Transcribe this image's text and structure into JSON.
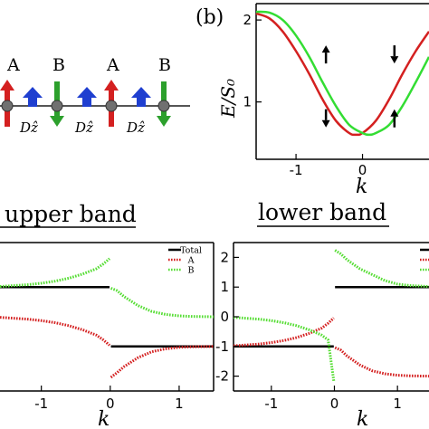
{
  "chain": {
    "site_labels": [
      "A",
      "B",
      "A",
      "B"
    ],
    "dm_labels": [
      "Dẑ",
      "Dẑ",
      "Dẑ"
    ],
    "colors": {
      "A": "#d42020",
      "B": "#2ca02c",
      "D": "#1f3fd0",
      "atom": "#707070"
    }
  },
  "chart_data": [
    {
      "id": "panel-b",
      "type": "line",
      "panel_label": "(b)",
      "xlabel": "k",
      "ylabel": "E/S₀",
      "xlim": [
        -1.6,
        1.0
      ],
      "ylim": [
        0.3,
        2.2
      ],
      "xticks": [
        -1,
        0
      ],
      "yticks": [
        1,
        2
      ],
      "series": [
        {
          "color": "#d42020",
          "x": [
            -1.6,
            -1.4,
            -1.2,
            -1.0,
            -0.8,
            -0.6,
            -0.4,
            -0.2,
            -0.1,
            0.0,
            0.2,
            0.4,
            0.6,
            0.8,
            1.0
          ],
          "values": [
            2.08,
            2.02,
            1.86,
            1.62,
            1.34,
            1.03,
            0.77,
            0.62,
            0.6,
            0.62,
            0.77,
            1.03,
            1.34,
            1.62,
            1.86
          ]
        },
        {
          "color": "#33dd33",
          "x": [
            -1.6,
            -1.4,
            -1.2,
            -1.0,
            -0.8,
            -0.6,
            -0.4,
            -0.2,
            0.0,
            0.1,
            0.2,
            0.4,
            0.6,
            0.8,
            1.0
          ],
          "values": [
            2.1,
            2.09,
            2.0,
            1.81,
            1.55,
            1.24,
            0.95,
            0.72,
            0.62,
            0.6,
            0.62,
            0.72,
            0.95,
            1.24,
            1.55
          ]
        }
      ],
      "spin_arrows": [
        {
          "x": -0.55,
          "y": 1.58,
          "dir": "up"
        },
        {
          "x": -0.55,
          "y": 0.8,
          "dir": "down"
        },
        {
          "x": 0.48,
          "y": 1.58,
          "dir": "down"
        },
        {
          "x": 0.48,
          "y": 0.8,
          "dir": "up"
        }
      ]
    },
    {
      "id": "upper-band",
      "type": "line",
      "title": "upper band",
      "xlabel": "k",
      "xlim": [
        -1.6,
        1.5
      ],
      "ylim": [
        -2.5,
        2.5
      ],
      "xticks": [
        -1,
        0,
        1
      ],
      "legend": {
        "position": "top-right",
        "entries": [
          {
            "label": "Total",
            "color": "#000000"
          },
          {
            "label": "A",
            "color": "#d42020"
          },
          {
            "label": "B",
            "color": "#55dd33"
          }
        ]
      },
      "series": [
        {
          "name": "Total",
          "color": "#000000",
          "style": "solid",
          "x": [
            -1.6,
            -0.01,
            0.01,
            1.5
          ],
          "values": [
            1,
            1,
            -1,
            -1
          ]
        },
        {
          "name": "A",
          "color": "#d42020",
          "style": "dotted",
          "x": [
            -1.6,
            -1.4,
            -1.2,
            -1.0,
            -0.8,
            -0.6,
            -0.4,
            -0.2,
            -0.1,
            -0.01,
            0.01,
            0.1,
            0.2,
            0.4,
            0.6,
            0.8,
            1.0,
            1.2,
            1.5
          ],
          "values": [
            -0.02,
            -0.05,
            -0.08,
            -0.13,
            -0.2,
            -0.3,
            -0.44,
            -0.62,
            -0.78,
            -0.96,
            -2.04,
            -1.88,
            -1.68,
            -1.38,
            -1.18,
            -1.08,
            -1.03,
            -1.01,
            -1.0
          ]
        },
        {
          "name": "B",
          "color": "#55dd33",
          "style": "dotted",
          "x": [
            -1.6,
            -1.4,
            -1.2,
            -1.0,
            -0.8,
            -0.6,
            -0.4,
            -0.2,
            -0.1,
            -0.01,
            0.01,
            0.1,
            0.2,
            0.4,
            0.6,
            0.8,
            1.0,
            1.2,
            1.5
          ],
          "values": [
            1.02,
            1.05,
            1.08,
            1.13,
            1.2,
            1.3,
            1.44,
            1.62,
            1.78,
            1.96,
            0.96,
            0.88,
            0.68,
            0.38,
            0.18,
            0.08,
            0.03,
            0.01,
            0.0
          ]
        }
      ]
    },
    {
      "id": "lower-band",
      "type": "line",
      "title": "lower band",
      "xlabel": "k",
      "xlim": [
        -1.6,
        1.5
      ],
      "ylim": [
        -2.5,
        2.5
      ],
      "xticks": [
        -1,
        0,
        1
      ],
      "yticks": [
        -2,
        -1,
        0,
        1,
        2
      ],
      "series": [
        {
          "name": "Total",
          "color": "#000000",
          "style": "solid",
          "x": [
            -1.6,
            -0.01,
            0.01,
            1.5
          ],
          "values": [
            -1,
            -1,
            1,
            1
          ]
        },
        {
          "name": "A",
          "color": "#d42020",
          "style": "dotted",
          "x": [
            -1.6,
            -1.4,
            -1.2,
            -1.0,
            -0.8,
            -0.6,
            -0.4,
            -0.2,
            -0.1,
            -0.01,
            0.01,
            0.1,
            0.2,
            0.4,
            0.6,
            0.8,
            1.0,
            1.2,
            1.5
          ],
          "values": [
            -0.98,
            -0.95,
            -0.92,
            -0.87,
            -0.8,
            -0.7,
            -0.56,
            -0.38,
            -0.22,
            -0.04,
            -1.04,
            -1.12,
            -1.32,
            -1.62,
            -1.82,
            -1.92,
            -1.97,
            -1.99,
            -2.0
          ]
        },
        {
          "name": "B",
          "color": "#55dd33",
          "style": "dotted",
          "x": [
            -1.6,
            -1.4,
            -1.2,
            -1.0,
            -0.8,
            -0.6,
            -0.4,
            -0.2,
            -0.1,
            -0.01,
            0.01,
            0.1,
            0.2,
            0.4,
            0.6,
            0.8,
            1.0,
            1.2,
            1.5
          ],
          "values": [
            -0.02,
            -0.05,
            -0.08,
            -0.13,
            -0.2,
            -0.3,
            -0.44,
            -0.62,
            -0.78,
            -2.16,
            2.24,
            2.12,
            1.92,
            1.62,
            1.42,
            1.22,
            1.1,
            1.05,
            1.02
          ]
        }
      ]
    }
  ]
}
